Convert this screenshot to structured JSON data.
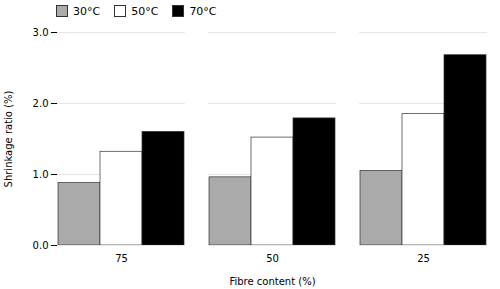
{
  "chart_data": {
    "type": "bar",
    "categories": [
      "75",
      "50",
      "25"
    ],
    "series": [
      {
        "name": "30°C",
        "color": "#aaaaaa",
        "values": [
          0.88,
          0.96,
          1.05
        ]
      },
      {
        "name": "50°C",
        "color": "#ffffff",
        "values": [
          1.32,
          1.52,
          1.85
        ]
      },
      {
        "name": "70°C",
        "color": "#000000",
        "values": [
          1.6,
          1.79,
          2.68
        ]
      }
    ],
    "xlabel": "Fibre content (%)",
    "ylabel": "Shrinkage ratio (%)",
    "ylim": [
      0.0,
      3.0
    ],
    "yticks": [
      {
        "value": 0.0,
        "label": "0.0"
      },
      {
        "value": 1.0,
        "label": "1.0"
      },
      {
        "value": 2.0,
        "label": "2.0"
      },
      {
        "value": 3.0,
        "label": "3.0"
      }
    ],
    "grid": true,
    "legend": "upper left"
  }
}
